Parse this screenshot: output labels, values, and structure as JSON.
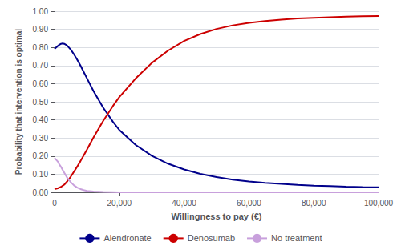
{
  "chart_data": {
    "type": "line",
    "xlabel": "Willingness to pay (€)",
    "ylabel": "Probability that intervention is optimal",
    "xlim": [
      0,
      100000
    ],
    "ylim": [
      0.0,
      1.0
    ],
    "xticks": [
      0,
      {
        "value": 20000,
        "label": "20,000"
      },
      {
        "value": 40000,
        "label": "40,000"
      },
      {
        "value": 60000,
        "label": "60,000"
      },
      {
        "value": 80000,
        "label": "80,000"
      },
      {
        "value": 100000,
        "label": "100,000"
      }
    ],
    "yticks": [
      {
        "value": 0.0,
        "label": "0.00"
      },
      {
        "value": 0.1,
        "label": "0.10"
      },
      {
        "value": 0.2,
        "label": "0.20"
      },
      {
        "value": 0.3,
        "label": "0.30"
      },
      {
        "value": 0.4,
        "label": "0.40"
      },
      {
        "value": 0.5,
        "label": "0.50"
      },
      {
        "value": 0.6,
        "label": "0.60"
      },
      {
        "value": 0.7,
        "label": "0.70"
      },
      {
        "value": 0.8,
        "label": "0.80"
      },
      {
        "value": 0.9,
        "label": "0.90"
      },
      {
        "value": 1.0,
        "label": "1.00"
      }
    ],
    "grid": true,
    "legend": "bottom",
    "series": [
      {
        "name": "Alendronate",
        "color": "#00008B",
        "x": [
          0,
          500,
          1000,
          1500,
          2000,
          2500,
          3000,
          3500,
          4000,
          5000,
          6000,
          7000,
          8000,
          9000,
          10000,
          12000,
          15000,
          18000,
          20000,
          25000,
          30000,
          35000,
          40000,
          45000,
          50000,
          55000,
          60000,
          65000,
          70000,
          75000,
          80000,
          85000,
          90000,
          95000,
          100000
        ],
        "values": [
          0.792,
          0.8,
          0.808,
          0.815,
          0.82,
          0.822,
          0.82,
          0.815,
          0.808,
          0.788,
          0.762,
          0.732,
          0.7,
          0.665,
          0.63,
          0.56,
          0.468,
          0.39,
          0.344,
          0.262,
          0.202,
          0.158,
          0.126,
          0.102,
          0.084,
          0.07,
          0.06,
          0.052,
          0.046,
          0.041,
          0.037,
          0.034,
          0.031,
          0.029,
          0.028
        ]
      },
      {
        "name": "Denosumab",
        "color": "#CC0000",
        "x": [
          0,
          500,
          1000,
          1500,
          2000,
          2500,
          3000,
          3500,
          4000,
          5000,
          6000,
          7000,
          8000,
          9000,
          10000,
          12000,
          15000,
          18000,
          20000,
          25000,
          30000,
          35000,
          40000,
          45000,
          50000,
          55000,
          60000,
          65000,
          70000,
          75000,
          80000,
          85000,
          90000,
          95000,
          100000
        ],
        "values": [
          0.018,
          0.02,
          0.022,
          0.026,
          0.03,
          0.036,
          0.042,
          0.052,
          0.062,
          0.086,
          0.114,
          0.142,
          0.172,
          0.204,
          0.236,
          0.302,
          0.394,
          0.476,
          0.526,
          0.628,
          0.714,
          0.782,
          0.836,
          0.874,
          0.902,
          0.922,
          0.936,
          0.946,
          0.954,
          0.96,
          0.964,
          0.967,
          0.97,
          0.972,
          0.974
        ]
      },
      {
        "name": "No treatment",
        "color": "#C8A0DC",
        "x": [
          0,
          500,
          1000,
          1500,
          2000,
          2500,
          3000,
          3500,
          4000,
          5000,
          6000,
          7000,
          8000,
          9000,
          10000,
          12000,
          15000,
          20000,
          25000,
          30000,
          100000
        ],
        "values": [
          0.19,
          0.18,
          0.17,
          0.154,
          0.14,
          0.124,
          0.108,
          0.093,
          0.078,
          0.056,
          0.038,
          0.026,
          0.018,
          0.012,
          0.008,
          0.004,
          0.002,
          0.0,
          0.0,
          0.0,
          0.0
        ]
      }
    ]
  }
}
